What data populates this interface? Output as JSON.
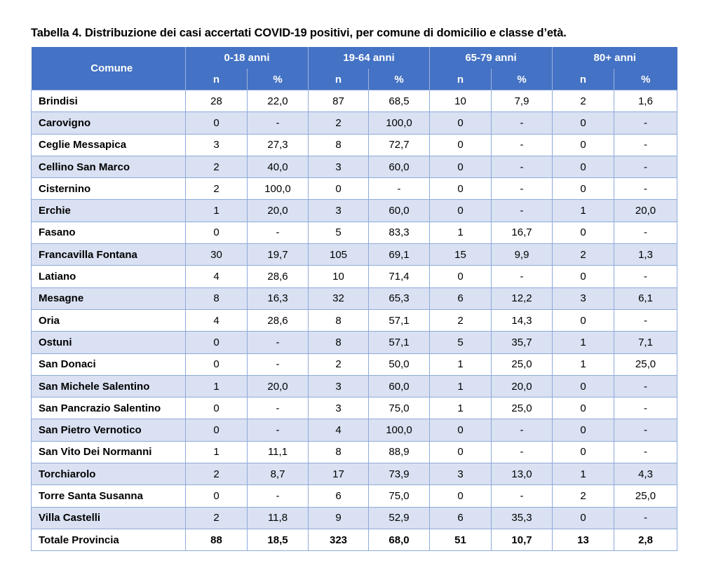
{
  "caption": "Tabella 4. Distribuzione dei casi accertati COVID-19 positivi, per comune di domicilio e classe d’età.",
  "header": {
    "comune": "Comune",
    "groups": [
      "0-18 anni",
      "19-64 anni",
      "65-79 anni",
      "80+ anni"
    ],
    "sub": [
      "n",
      "%",
      "n",
      "%",
      "n",
      "%",
      "n",
      "%"
    ]
  },
  "rows": [
    {
      "name": "Brindisi",
      "values": [
        "28",
        "22,0",
        "87",
        "68,5",
        "10",
        "7,9",
        "2",
        "1,6"
      ]
    },
    {
      "name": "Carovigno",
      "values": [
        "0",
        "-",
        "2",
        "100,0",
        "0",
        "-",
        "0",
        "-"
      ]
    },
    {
      "name": "Ceglie Messapica",
      "values": [
        "3",
        "27,3",
        "8",
        "72,7",
        "0",
        "-",
        "0",
        "-"
      ]
    },
    {
      "name": "Cellino San Marco",
      "values": [
        "2",
        "40,0",
        "3",
        "60,0",
        "0",
        "-",
        "0",
        "-"
      ]
    },
    {
      "name": "Cisternino",
      "values": [
        "2",
        "100,0",
        "0",
        "-",
        "0",
        "-",
        "0",
        "-"
      ]
    },
    {
      "name": "Erchie",
      "values": [
        "1",
        "20,0",
        "3",
        "60,0",
        "0",
        "-",
        "1",
        "20,0"
      ]
    },
    {
      "name": "Fasano",
      "values": [
        "0",
        "-",
        "5",
        "83,3",
        "1",
        "16,7",
        "0",
        "-"
      ]
    },
    {
      "name": "Francavilla Fontana",
      "values": [
        "30",
        "19,7",
        "105",
        "69,1",
        "15",
        "9,9",
        "2",
        "1,3"
      ]
    },
    {
      "name": "Latiano",
      "values": [
        "4",
        "28,6",
        "10",
        "71,4",
        "0",
        "-",
        "0",
        "-"
      ]
    },
    {
      "name": "Mesagne",
      "values": [
        "8",
        "16,3",
        "32",
        "65,3",
        "6",
        "12,2",
        "3",
        "6,1"
      ]
    },
    {
      "name": "Oria",
      "values": [
        "4",
        "28,6",
        "8",
        "57,1",
        "2",
        "14,3",
        "0",
        "-"
      ]
    },
    {
      "name": "Ostuni",
      "values": [
        "0",
        "-",
        "8",
        "57,1",
        "5",
        "35,7",
        "1",
        "7,1"
      ]
    },
    {
      "name": "San Donaci",
      "values": [
        "0",
        "-",
        "2",
        "50,0",
        "1",
        "25,0",
        "1",
        "25,0"
      ]
    },
    {
      "name": "San Michele Salentino",
      "values": [
        "1",
        "20,0",
        "3",
        "60,0",
        "1",
        "20,0",
        "0",
        "-"
      ]
    },
    {
      "name": "San Pancrazio Salentino",
      "values": [
        "0",
        "-",
        "3",
        "75,0",
        "1",
        "25,0",
        "0",
        "-"
      ]
    },
    {
      "name": "San Pietro Vernotico",
      "values": [
        "0",
        "-",
        "4",
        "100,0",
        "0",
        "-",
        "0",
        "-"
      ]
    },
    {
      "name": "San Vito Dei Normanni",
      "values": [
        "1",
        "11,1",
        "8",
        "88,9",
        "0",
        "-",
        "0",
        "-"
      ]
    },
    {
      "name": "Torchiarolo",
      "values": [
        "2",
        "8,7",
        "17",
        "73,9",
        "3",
        "13,0",
        "1",
        "4,3"
      ]
    },
    {
      "name": "Torre Santa Susanna",
      "values": [
        "0",
        "-",
        "6",
        "75,0",
        "0",
        "-",
        "2",
        "25,0"
      ]
    },
    {
      "name": "Villa Castelli",
      "values": [
        "2",
        "11,8",
        "9",
        "52,9",
        "6",
        "35,3",
        "0",
        "-"
      ]
    }
  ],
  "total": {
    "name": "Totale Provincia",
    "values": [
      "88",
      "18,5",
      "323",
      "68,0",
      "51",
      "10,7",
      "13",
      "2,8"
    ]
  },
  "colors": {
    "header_bg": "#4472c4",
    "row_shade": "#d9e1f2",
    "border": "#8eaadb"
  }
}
